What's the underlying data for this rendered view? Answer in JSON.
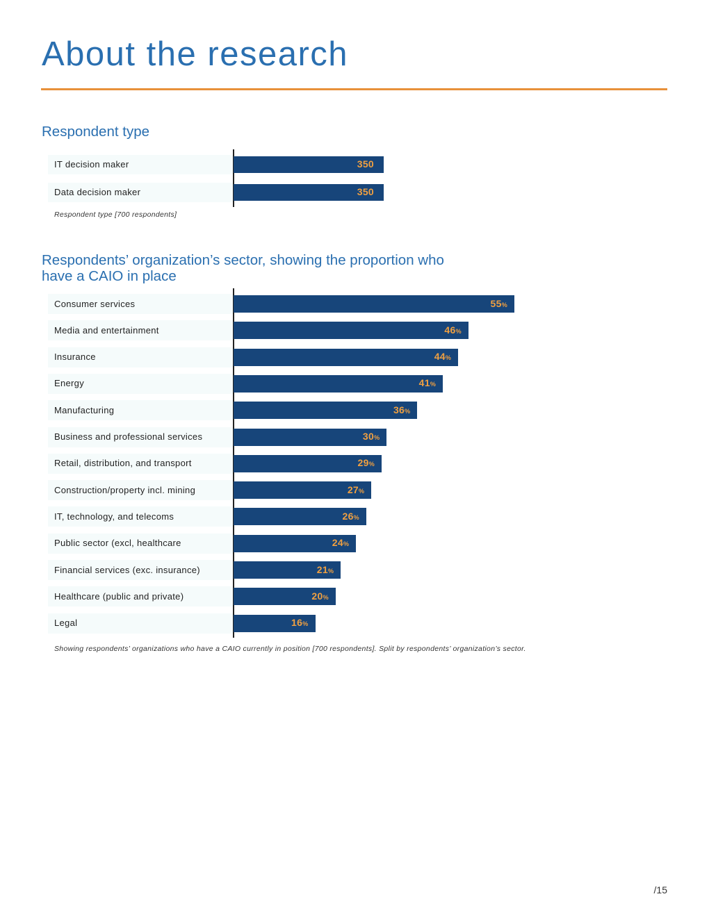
{
  "page": {
    "title": "About the research",
    "page_number": "/15",
    "colors": {
      "accent_rule": "#e8903a",
      "title_blue": "#2a6fb0",
      "bar": "#17457a",
      "bar_label": "#f0a041"
    }
  },
  "chart_data": [
    {
      "type": "bar",
      "orientation": "horizontal",
      "title": "Respondent type",
      "categories": [
        "IT decision maker",
        "Data decision maker"
      ],
      "values": [
        350,
        350
      ],
      "value_labels": [
        "350",
        "350"
      ],
      "note": "Respondent type [700 respondents]"
    },
    {
      "type": "bar",
      "orientation": "horizontal",
      "title_lines": [
        "Respondents’ organization’s sector, showing the proportion who",
        "have a CAIO in place"
      ],
      "categories": [
        "Consumer services",
        "Media and entertainment",
        "Insurance",
        "Energy",
        "Manufacturing",
        "Business and professional services",
        "Retail, distribution, and transport",
        "Construction/property incl. mining",
        "IT, technology, and telecoms",
        "Public sector (excl, healthcare",
        "Financial services (exc. insurance)",
        "Healthcare (public and private)",
        "Legal"
      ],
      "values": [
        55,
        46,
        44,
        41,
        36,
        30,
        29,
        27,
        26,
        24,
        21,
        20,
        16
      ],
      "unit": "%",
      "note": "Showing  respondents’ organizations who have a CAIO currently in position [700 respondents]. Split by respondents’ organization’s sector."
    }
  ]
}
